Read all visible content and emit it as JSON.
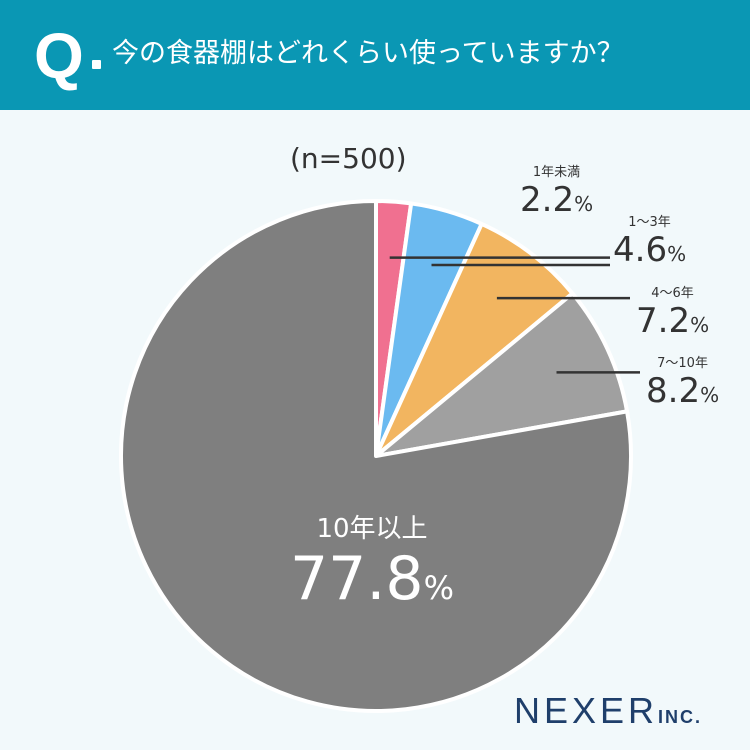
{
  "header": {
    "q_mark": "Q",
    "question": "今の食器棚はどれくらい使っていますか？"
  },
  "sample_note": "(n=500)",
  "logo": {
    "name": "NEXER",
    "suffix": "INC."
  },
  "colors": {
    "header_bg": "#0a97b4",
    "background": "#f2f9fb",
    "slice_1": "#f07090",
    "slice_2": "#6bbaf0",
    "slice_3": "#f2b560",
    "slice_4": "#a0a0a0",
    "slice_5": "#7f7f7f"
  },
  "chart_data": {
    "type": "pie",
    "unit": "%",
    "categories": [
      "1年未満",
      "1〜3年",
      "4〜6年",
      "7〜10年",
      "10年以上"
    ],
    "values": [
      2.2,
      4.6,
      7.2,
      8.2,
      77.8
    ],
    "value_labels": [
      "2.2",
      "4.6",
      "7.2",
      "8.2",
      "77.8"
    ],
    "start": "12 o'clock",
    "direction": "clockwise"
  }
}
